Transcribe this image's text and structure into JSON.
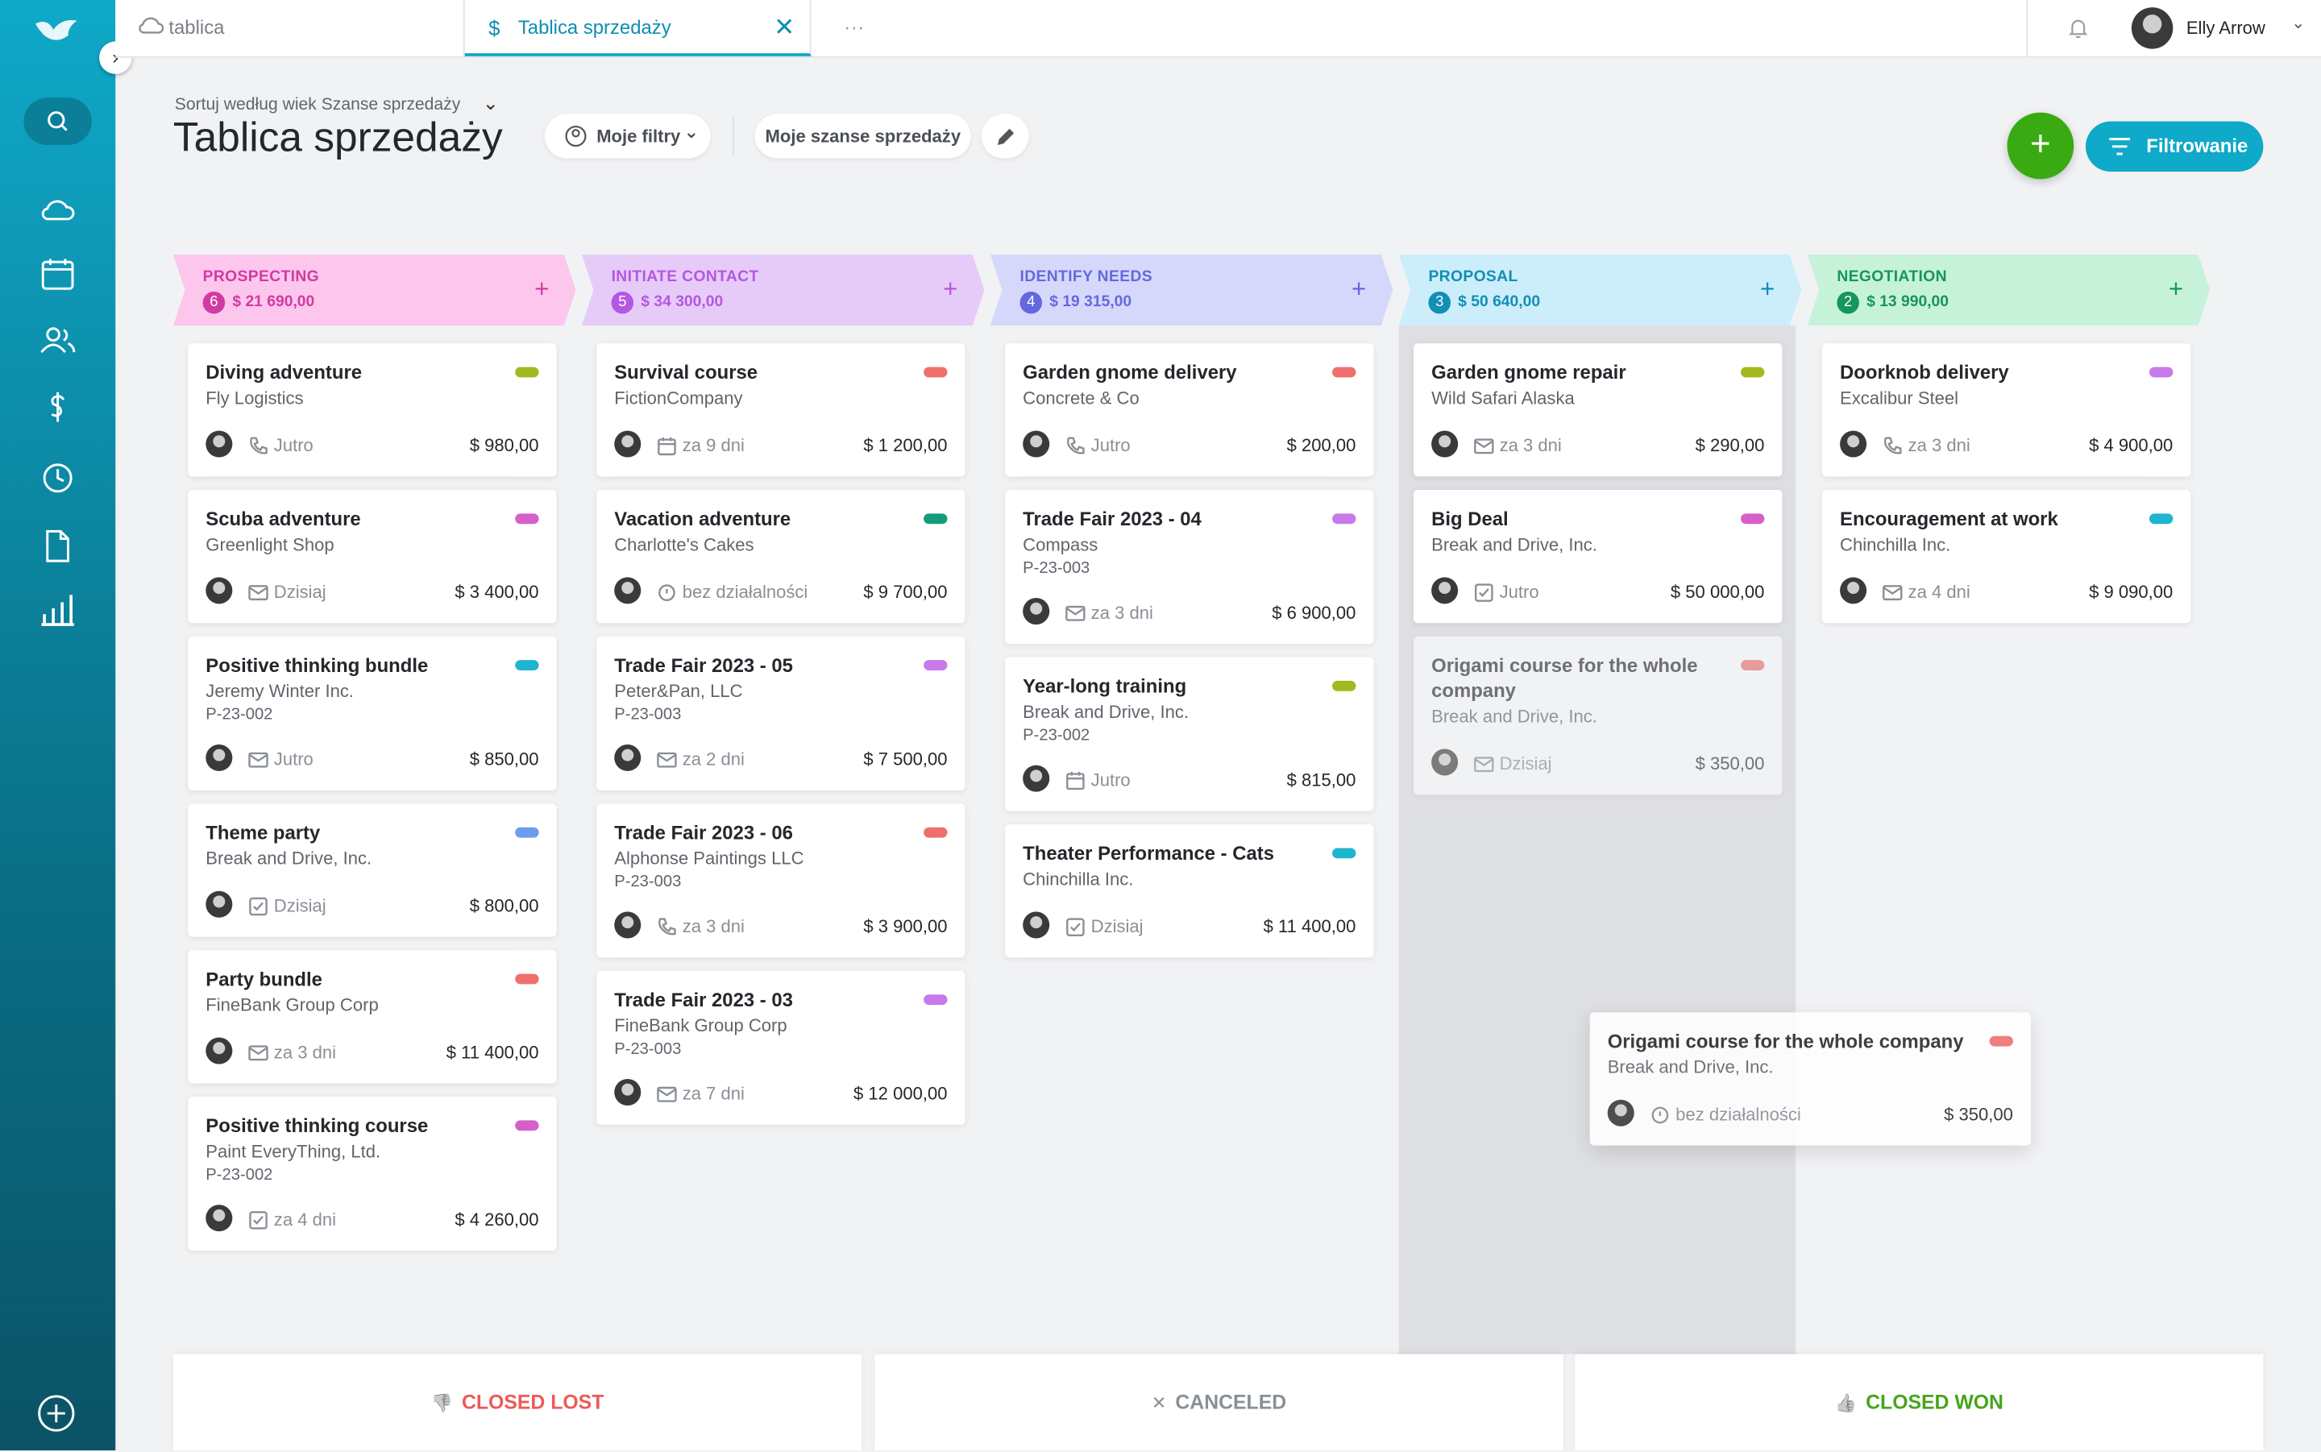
{
  "tabs": [
    {
      "label": "tablica"
    },
    {
      "label": "Tablica sprzedaży"
    }
  ],
  "user": {
    "name": "Elly Arrow"
  },
  "header": {
    "sort": "Sortuj według wiek Szanse sprzedaży",
    "title": "Tablica sprzedaży",
    "filter": "Moje filtry",
    "my_deals": "Moje szanse sprzedaży",
    "filter_button": "Filtrowanie"
  },
  "columns": [
    {
      "name": "PROSPECTING",
      "count": 6,
      "total": "$ 21 690,00",
      "bg": "#fdc6ec",
      "fg": "#d23aa3",
      "cards": [
        {
          "title": "Diving adventure",
          "company": "Fly Logistics",
          "icon": "phone",
          "activity": "Jutro",
          "amount": "$ 980,00",
          "tag": "#a3b91f"
        },
        {
          "title": "Scuba adventure",
          "company": "Greenlight Shop",
          "icon": "mail",
          "activity": "Dzisiaj",
          "amount": "$ 3 400,00",
          "tag": "#d65fc9"
        },
        {
          "title": "Positive thinking bundle",
          "company": "Jeremy Winter Inc.",
          "code": "P-23-002",
          "icon": "mail",
          "activity": "Jutro",
          "amount": "$ 850,00",
          "tag": "#1fb4cf"
        },
        {
          "title": "Theme party",
          "company": "Break and Drive, Inc.",
          "icon": "check",
          "activity": "Dzisiaj",
          "amount": "$ 800,00",
          "tag": "#6c9cf0"
        },
        {
          "title": "Party bundle",
          "company": "FineBank Group Corp",
          "icon": "mail",
          "activity": "za 3 dni",
          "amount": "$ 11 400,00",
          "tag": "#ef6f6c"
        },
        {
          "title": "Positive thinking course",
          "company": "Paint EveryThing, Ltd.",
          "code": "P-23-002",
          "icon": "check",
          "activity": "za 4 dni",
          "amount": "$ 4 260,00",
          "tag": "#d65fc9"
        }
      ]
    },
    {
      "name": "INITIATE CONTACT",
      "count": 5,
      "total": "$ 34 300,00",
      "bg": "#e6cbf8",
      "fg": "#b457e2",
      "cards": [
        {
          "title": "Survival course",
          "company": "FictionCompany",
          "icon": "calendar",
          "activity": "za 9 dni",
          "amount": "$ 1 200,00",
          "tag": "#ef6f6c"
        },
        {
          "title": "Vacation adventure",
          "company": "Charlotte's Cakes",
          "icon": "clock",
          "activity": "bez działalności",
          "amount": "$ 9 700,00",
          "tag": "#159a7a"
        },
        {
          "title": "Trade Fair 2023 - 05",
          "company": "Peter&Pan, LLC",
          "code": "P-23-003",
          "icon": "mail",
          "activity": "za 2 dni",
          "amount": "$ 7 500,00",
          "tag": "#c77ae8"
        },
        {
          "title": "Trade Fair 2023 - 06",
          "company": "Alphonse Paintings LLC",
          "code": "P-23-003",
          "icon": "phone",
          "activity": "za 3 dni",
          "amount": "$ 3 900,00",
          "tag": "#ef6f6c"
        },
        {
          "title": "Trade Fair 2023 - 03",
          "company": "FineBank Group Corp",
          "code": "P-23-003",
          "icon": "mail",
          "activity": "za 7 dni",
          "amount": "$ 12 000,00",
          "tag": "#c77ae8"
        }
      ]
    },
    {
      "name": "IDENTIFY NEEDS",
      "count": 4,
      "total": "$ 19 315,00",
      "bg": "#d6d8fb",
      "fg": "#6468de",
      "cards": [
        {
          "title": "Garden gnome delivery",
          "company": "Concrete & Co",
          "icon": "phone",
          "activity": "Jutro",
          "amount": "$ 200,00",
          "tag": "#ef6f6c"
        },
        {
          "title": "Trade Fair 2023 - 04",
          "company": "Compass",
          "code": "P-23-003",
          "icon": "mail",
          "activity": "za 3 dni",
          "amount": "$ 6 900,00",
          "tag": "#c77ae8"
        },
        {
          "title": "Year-long training",
          "company": "Break and Drive, Inc.",
          "code": "P-23-002",
          "icon": "calendar",
          "activity": "Jutro",
          "amount": "$ 815,00",
          "tag": "#a3b91f"
        },
        {
          "title": "Theater Performance - Cats",
          "company": "Chinchilla Inc.",
          "icon": "check",
          "activity": "Dzisiaj",
          "amount": "$ 11 400,00",
          "tag": "#1fb4cf"
        }
      ]
    },
    {
      "name": "PROPOSAL",
      "count": 3,
      "total": "$ 50 640,00",
      "bg": "#ccedfa",
      "fg": "#128fb3",
      "highlight": true,
      "cards": [
        {
          "title": "Garden gnome repair",
          "company": "Wild Safari Alaska",
          "icon": "mail",
          "activity": "za 3 dni",
          "amount": "$ 290,00",
          "tag": "#a3b91f"
        },
        {
          "title": "Big Deal",
          "company": "Break and Drive, Inc.",
          "icon": "check",
          "activity": "Jutro",
          "amount": "$ 50 000,00",
          "tag": "#d65fc9"
        },
        {
          "title": "Origami course for the whole company",
          "company": "Break and Drive, Inc.",
          "icon": "mail",
          "activity": "Dzisiaj",
          "amount": "$ 350,00",
          "tag": "#ef6f6c",
          "ghost": true
        }
      ]
    },
    {
      "name": "NEGOTIATION",
      "count": 2,
      "total": "$ 13 990,00",
      "bg": "#c6f2da",
      "fg": "#16965a",
      "cards": [
        {
          "title": "Doorknob delivery",
          "company": "Excalibur Steel",
          "icon": "phone",
          "activity": "za 3 dni",
          "amount": "$ 4 900,00",
          "tag": "#c77ae8"
        },
        {
          "title": "Encouragement at work",
          "company": "Chinchilla Inc.",
          "icon": "mail",
          "activity": "za 4 dni",
          "amount": "$ 9 090,00",
          "tag": "#1fb4cf"
        }
      ]
    }
  ],
  "dragged_card": {
    "title": "Origami course for the whole company",
    "company": "Break and Drive, Inc.",
    "icon": "clock",
    "activity": "bez działalności",
    "amount": "$ 350,00",
    "tag": "#ef6f6c"
  },
  "drop_zones": [
    {
      "label": "CLOSED LOST",
      "color": "#ec5a56"
    },
    {
      "label": "CANCELED",
      "color": "#8a8f96"
    },
    {
      "label": "CLOSED WON",
      "color": "#46a51e"
    }
  ]
}
